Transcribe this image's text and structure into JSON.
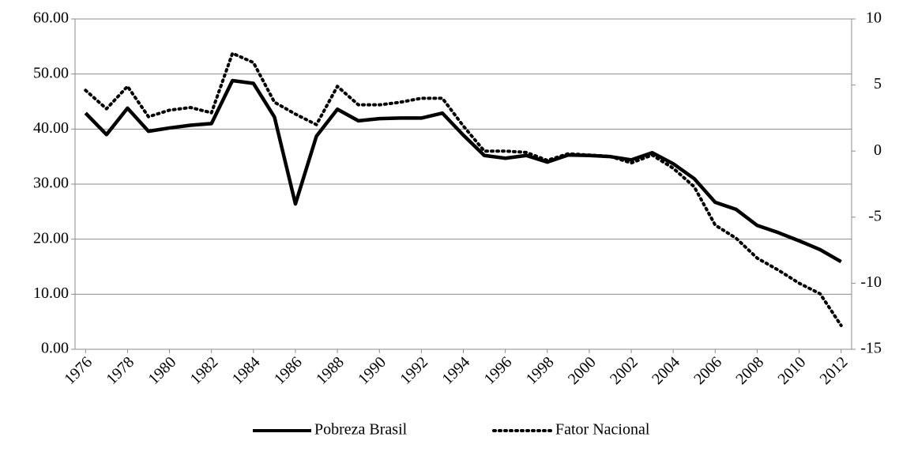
{
  "chart_data": {
    "type": "line",
    "x": [
      1976,
      1977,
      1978,
      1979,
      1980,
      1981,
      1982,
      1983,
      1984,
      1985,
      1986,
      1987,
      1988,
      1989,
      1990,
      1991,
      1992,
      1993,
      1994,
      1995,
      1996,
      1997,
      1998,
      1999,
      2000,
      2001,
      2002,
      2003,
      2004,
      2005,
      2006,
      2007,
      2008,
      2009,
      2010,
      2011,
      2012
    ],
    "xlim": [
      1975.5,
      2012.5
    ],
    "xticks": [
      1976,
      1978,
      1980,
      1982,
      1984,
      1986,
      1988,
      1990,
      1992,
      1994,
      1996,
      1998,
      2000,
      2002,
      2004,
      2006,
      2008,
      2010,
      2012
    ],
    "ylim": [
      0,
      60
    ],
    "yticks": [
      {
        "value": 0,
        "label": "0.00"
      },
      {
        "value": 10,
        "label": "10.00"
      },
      {
        "value": 20,
        "label": "20.00"
      },
      {
        "value": 30,
        "label": "30.00"
      },
      {
        "value": 40,
        "label": "40.00"
      },
      {
        "value": 50,
        "label": "50.00"
      },
      {
        "value": 60,
        "label": "60.00"
      }
    ],
    "y2lim": [
      -15,
      10
    ],
    "y2ticks": [
      -15,
      -10,
      -5,
      0,
      5,
      10
    ],
    "grid": true,
    "legend": "bottom",
    "series": [
      {
        "name": "Pobreza Brasil",
        "color": "#000000",
        "line_style": "solid",
        "values": [
          42.9,
          39.0,
          43.8,
          39.6,
          40.2,
          40.7,
          41.0,
          48.8,
          48.3,
          42.2,
          26.4,
          38.7,
          43.6,
          41.5,
          41.9,
          42.0,
          42.0,
          42.9,
          38.9,
          35.2,
          34.7,
          35.2,
          34.0,
          35.3,
          35.2,
          35.0,
          34.4,
          35.7,
          33.7,
          31.0,
          26.7,
          25.4,
          22.5,
          21.2,
          19.7,
          18.1,
          15.9
        ]
      },
      {
        "name": "Fator Nacional",
        "color": "#000000",
        "line_style": "dotted",
        "axis": "y2",
        "values": [
          4.6,
          3.2,
          4.9,
          2.6,
          3.1,
          3.3,
          2.9,
          7.4,
          6.7,
          3.7,
          2.8,
          2.0,
          4.9,
          3.5,
          3.5,
          3.7,
          4.0,
          4.0,
          1.9,
          0.0,
          0.0,
          -0.1,
          -0.7,
          -0.2,
          -0.3,
          -0.4,
          -0.9,
          -0.3,
          -1.3,
          -2.7,
          -5.6,
          -6.6,
          -8.1,
          -9.0,
          -10.0,
          -10.8,
          -13.2
        ]
      }
    ]
  }
}
